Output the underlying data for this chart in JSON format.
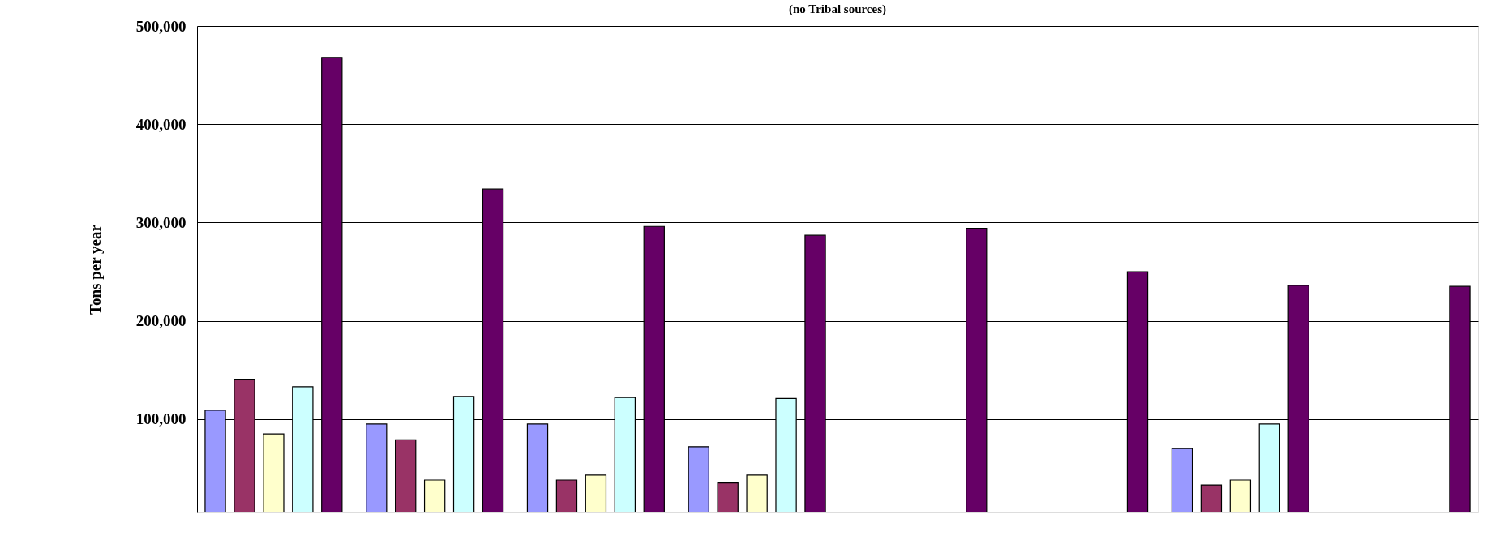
{
  "chart_data": {
    "type": "bar",
    "title": "(no Tribal sources)",
    "ylabel": "Tons per year",
    "categories": [
      null,
      null,
      null,
      null,
      null,
      null,
      null,
      null
    ],
    "series": [
      {
        "color": "#9999ff",
        "values": [
          109000,
          95000,
          95000,
          72000,
          null,
          null,
          70000,
          null
        ]
      },
      {
        "color": "#993366",
        "values": [
          140000,
          79000,
          38000,
          35000,
          null,
          null,
          33000,
          null
        ]
      },
      {
        "color": "#ffffcc",
        "values": [
          85000,
          38000,
          43000,
          43000,
          null,
          null,
          38000,
          null
        ]
      },
      {
        "color": "#ccffff",
        "values": [
          133000,
          123000,
          122000,
          121000,
          null,
          null,
          95000,
          null
        ]
      },
      {
        "color": "#660066",
        "values": [
          468000,
          334000,
          296000,
          287000,
          294000,
          250000,
          236000,
          235000
        ]
      }
    ],
    "ylim": [
      5000,
      500000
    ],
    "yticks": [
      {
        "value": 100000,
        "label": "100,000"
      },
      {
        "value": 200000,
        "label": "200,000"
      },
      {
        "value": 300000,
        "label": "300,000"
      },
      {
        "value": 400000,
        "label": "400,000"
      },
      {
        "value": 500000,
        "label": "500,000"
      }
    ],
    "grid": "y",
    "tick_labels": "y",
    "legend": false
  }
}
